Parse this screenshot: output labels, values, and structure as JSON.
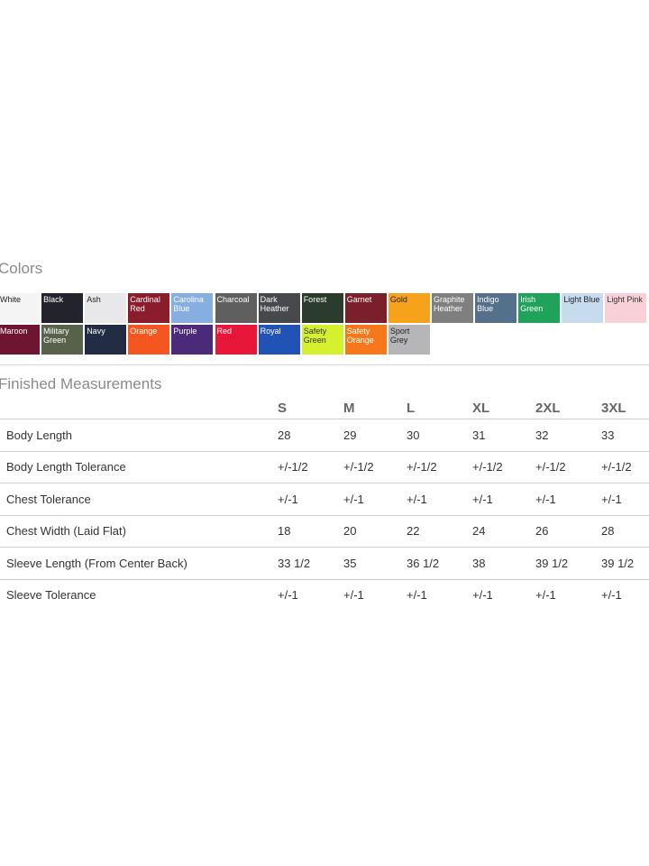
{
  "colors_section": {
    "title": "Colors",
    "swatches": [
      {
        "name": "White",
        "bg": "#f4f4f4",
        "fg": "#222222"
      },
      {
        "name": "Black",
        "bg": "#23232b",
        "fg": "#ffffff"
      },
      {
        "name": "Ash",
        "bg": "#e8e8ea",
        "fg": "#222222"
      },
      {
        "name": "Cardinal Red",
        "bg": "#8b1c2b",
        "fg": "#ffffff"
      },
      {
        "name": "Carolina Blue",
        "bg": "#86aee0",
        "fg": "#ffffff"
      },
      {
        "name": "Charcoal",
        "bg": "#5f5f5f",
        "fg": "#ffffff"
      },
      {
        "name": "Dark Heather",
        "bg": "#47494c",
        "fg": "#ffffff"
      },
      {
        "name": "Forest",
        "bg": "#2b3b2c",
        "fg": "#ffffff"
      },
      {
        "name": "Garnet",
        "bg": "#7b1f2d",
        "fg": "#ffffff"
      },
      {
        "name": "Gold",
        "bg": "#f7a21b",
        "fg": "#222222"
      },
      {
        "name": "Graphite Heather",
        "bg": "#7f7f80",
        "fg": "#ffffff"
      },
      {
        "name": "Indigo Blue",
        "bg": "#55708a",
        "fg": "#ffffff"
      },
      {
        "name": "Irish Green",
        "bg": "#1fa35a",
        "fg": "#ffffff"
      },
      {
        "name": "Light Blue",
        "bg": "#c6dbee",
        "fg": "#222222"
      },
      {
        "name": "Light Pink",
        "bg": "#f8d0d8",
        "fg": "#333333"
      },
      {
        "name": "Maroon",
        "bg": "#6e1631",
        "fg": "#ffffff"
      },
      {
        "name": "Military Green",
        "bg": "#58624a",
        "fg": "#ffffff"
      },
      {
        "name": "Navy",
        "bg": "#232c45",
        "fg": "#ffffff"
      },
      {
        "name": "Orange",
        "bg": "#f4561f",
        "fg": "#ffffff"
      },
      {
        "name": "Purple",
        "bg": "#4b2a7a",
        "fg": "#ffffff"
      },
      {
        "name": "Red",
        "bg": "#e8173a",
        "fg": "#ffffff"
      },
      {
        "name": "Royal",
        "bg": "#2153b6",
        "fg": "#ffffff"
      },
      {
        "name": "Safety Green",
        "bg": "#d5f02c",
        "fg": "#333333"
      },
      {
        "name": "Safety Orange",
        "bg": "#f7771b",
        "fg": "#ffffff"
      },
      {
        "name": "Sport Grey",
        "bg": "#b6b6b9",
        "fg": "#222222"
      }
    ]
  },
  "measurements": {
    "title": "Finished Measurements",
    "sizes": [
      "S",
      "M",
      "L",
      "XL",
      "2XL",
      "3XL"
    ],
    "rows": [
      {
        "label": "Body Length",
        "values": [
          "28",
          "29",
          "30",
          "31",
          "32",
          "33"
        ]
      },
      {
        "label": "Body Length Tolerance",
        "values": [
          "+/-1/2",
          "+/-1/2",
          "+/-1/2",
          "+/-1/2",
          "+/-1/2",
          "+/-1/2"
        ]
      },
      {
        "label": "Chest Tolerance",
        "values": [
          "+/-1",
          "+/-1",
          "+/-1",
          "+/-1",
          "+/-1",
          "+/-1"
        ]
      },
      {
        "label": "Chest Width (Laid Flat)",
        "values": [
          "18",
          "20",
          "22",
          "24",
          "26",
          "28"
        ]
      },
      {
        "label": "Sleeve Length (From Center Back)",
        "values": [
          "33 1/2",
          "35",
          "36 1/2",
          "38",
          "39 1/2",
          "39 1/2"
        ]
      },
      {
        "label": "Sleeve Tolerance",
        "values": [
          "+/-1",
          "+/-1",
          "+/-1",
          "+/-1",
          "+/-1",
          "+/-1"
        ]
      }
    ]
  }
}
